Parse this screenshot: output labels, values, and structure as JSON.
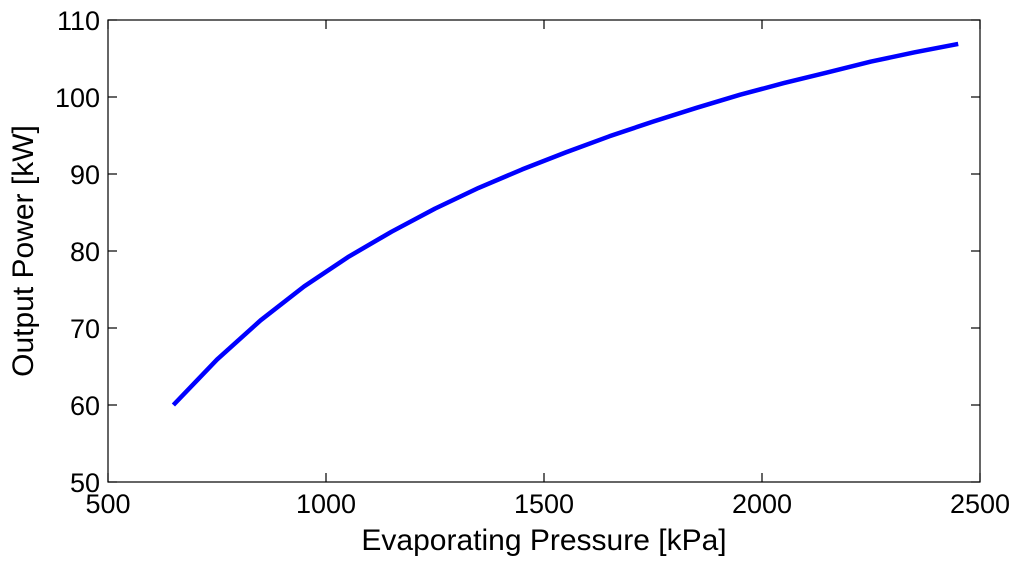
{
  "chart_data": {
    "type": "line",
    "title": "",
    "xlabel": "Evaporating Pressure [kPa]",
    "ylabel": "Output Power [kW]",
    "xlim": [
      500,
      2500
    ],
    "ylim": [
      50,
      110
    ],
    "xticks": [
      500,
      1000,
      1500,
      2000,
      2500
    ],
    "yticks": [
      50,
      60,
      70,
      80,
      90,
      100,
      110
    ],
    "grid": false,
    "series": [
      {
        "color": "#0000ff",
        "x": [
          650,
          750,
          850,
          950,
          1050,
          1150,
          1250,
          1350,
          1450,
          1550,
          1650,
          1750,
          1850,
          1950,
          2050,
          2150,
          2250,
          2350,
          2450
        ],
        "y": [
          60.0,
          65.9,
          71.0,
          75.4,
          79.2,
          82.5,
          85.5,
          88.2,
          90.6,
          92.8,
          94.9,
          96.8,
          98.6,
          100.3,
          101.8,
          103.2,
          104.6,
          105.8,
          106.9
        ]
      }
    ]
  }
}
